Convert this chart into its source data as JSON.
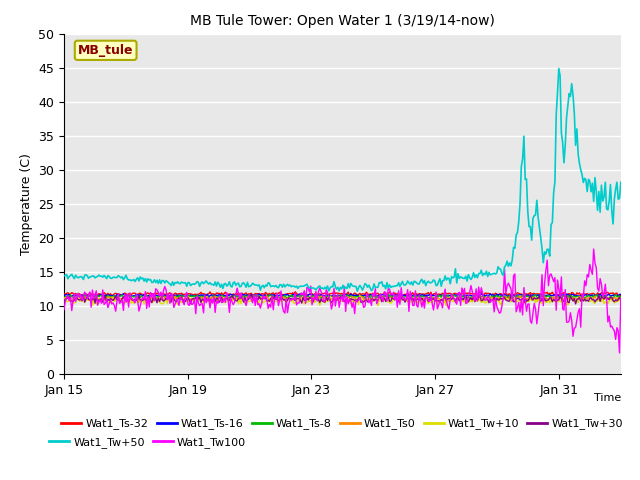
{
  "title": "MB Tule Tower: Open Water 1 (3/19/14-now)",
  "xlabel": "Time",
  "ylabel": "Temperature (C)",
  "ylim": [
    0,
    50
  ],
  "yticks": [
    0,
    5,
    10,
    15,
    20,
    25,
    30,
    35,
    40,
    45,
    50
  ],
  "xtick_labels": [
    "Jan 15",
    "Jan 19",
    "Jan 23",
    "Jan 27",
    "Jan 31"
  ],
  "xtick_positions": [
    0,
    4,
    8,
    12,
    16
  ],
  "legend_box_label": "MB_tule",
  "legend_box_color": "#FFFFC0",
  "legend_box_border": "#AAAA00",
  "bg_color": "#E8E8E8",
  "grid_color": "#FFFFFF",
  "series_colors": {
    "Wat1_Ts-32": "#FF0000",
    "Wat1_Ts-16": "#0000FF",
    "Wat1_Ts-8": "#00BB00",
    "Wat1_Ts0": "#FF8800",
    "Wat1_Tw+10": "#DDDD00",
    "Wat1_Tw+30": "#880088",
    "Wat1_Tw+50": "#00CCCC",
    "Wat1_Tw100": "#FF00FF"
  },
  "legend_row1": [
    "Wat1_Ts-32",
    "Wat1_Ts-16",
    "Wat1_Ts-8",
    "Wat1_Ts0",
    "Wat1_Tw+10",
    "Wat1_Tw+30"
  ],
  "legend_row2": [
    "Wat1_Tw+50",
    "Wat1_Tw100"
  ]
}
